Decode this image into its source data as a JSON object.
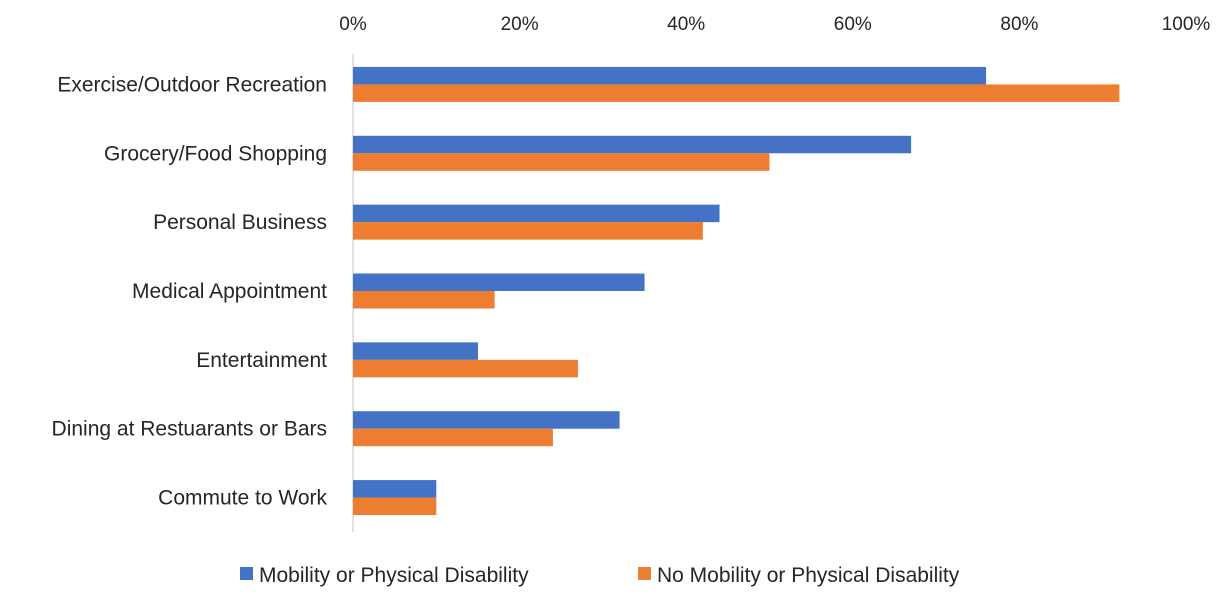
{
  "chart_data": {
    "type": "bar",
    "orientation": "horizontal",
    "x_axis_position": "top",
    "categories": [
      "Exercise/Outdoor Recreation",
      "Grocery/Food Shopping",
      "Personal Business",
      "Medical Appointment",
      "Entertainment",
      "Dining at Restuarants or Bars",
      "Commute to Work"
    ],
    "series": [
      {
        "name": "Mobility or Physical Disability",
        "color": "#4472C4",
        "values": [
          76,
          67,
          44,
          35,
          15,
          32,
          10
        ]
      },
      {
        "name": "No Mobility or Physical Disability",
        "color": "#ED7D31",
        "values": [
          92,
          50,
          42,
          17,
          27,
          24,
          10
        ]
      }
    ],
    "x_ticks": [
      "0%",
      "20%",
      "40%",
      "60%",
      "80%",
      "100%"
    ],
    "xlim": [
      0,
      100
    ],
    "grid": false,
    "legend": "bottom-center",
    "title": "",
    "xlabel": "",
    "ylabel": ""
  }
}
